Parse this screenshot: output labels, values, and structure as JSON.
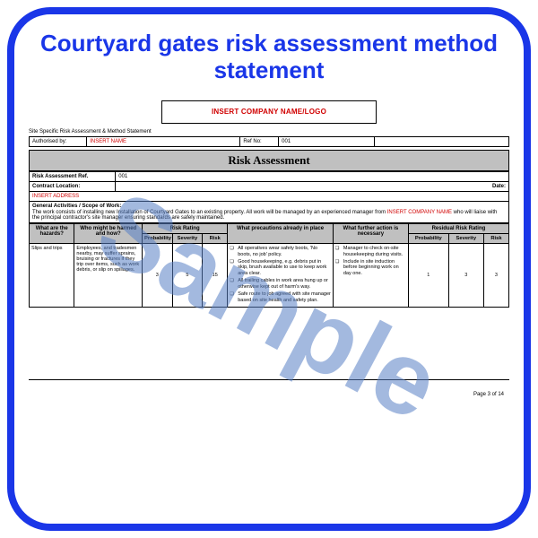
{
  "title": "Courtyard gates risk assessment method statement",
  "watermark": "Sample",
  "logo_placeholder": "INSERT COMPANY NAME/LOGO",
  "meta": {
    "doc_type": "Site Specific Risk Assessment & Method Statement",
    "authorised_by_label": "Authorised by:",
    "authorised_by_value": "INSERT NAME",
    "ref_no_label": "Ref No:",
    "ref_no_value": "001"
  },
  "section_title": "Risk Assessment",
  "info": {
    "ref_label": "Risk Assessment Ref.",
    "ref_value": "001",
    "contract_location_label": "Contract Location:",
    "contract_location_value": "INSERT ADDRESS",
    "date_label": "Date:",
    "scope_label": "General Activities / Scope of Work:",
    "scope_text_a": "The work consists of installing new Installation of Courtyard Gates to an existing property. All work will be managed by an experienced manager from ",
    "scope_text_b": "INSERT COMPANY NAME",
    "scope_text_c": " who will liaise with the principal contractor's site manager ensuring standards are safely maintained."
  },
  "risk_headers": {
    "hazards": "What are the hazards?",
    "who": "Who might be harmed and how?",
    "risk_rating": "Risk Rating",
    "precautions": "What precautions already in place",
    "further": "What further action is necessary",
    "residual": "Residual Risk Rating",
    "probability": "Probability",
    "severity": "Severity",
    "risk": "Risk"
  },
  "risk_row": {
    "hazard": "Slips and trips",
    "who": "Employees, and tradesmen nearby, may suffer sprains, bruising or fractures if they trip over items, such as work debris, or slip on spillages.",
    "rating": {
      "probability": 3,
      "severity": 5,
      "risk": 15
    },
    "precautions": [
      "All operatives wear safety boots, 'No boots, no job' policy.",
      "Good housekeeping, e.g. debris put in skip, brush available to use to keep work area clear.",
      "All trailing cables in work area hung up or otherwise kept out of harm's way.",
      "Safe route to job agreed with site manager based on site health and safety plan."
    ],
    "further": [
      "Manager to check on-site housekeeping during visits.",
      "Include in site induction before beginning work on day one."
    ],
    "residual": {
      "probability": 1,
      "severity": 3,
      "risk": 3
    }
  },
  "footer": "Page 3 of 14",
  "colors": {
    "border": "#1a36e8",
    "title": "#1a36e8",
    "red_text": "#d00000",
    "section_bg": "#c0c0c0",
    "watermark": "rgba(88,128,196,0.55)"
  }
}
